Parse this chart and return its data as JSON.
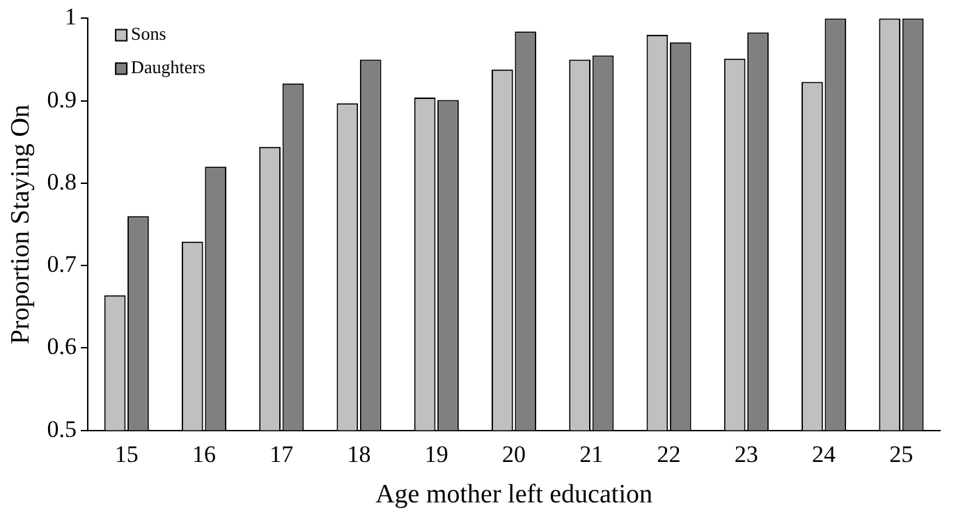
{
  "chart_data": {
    "type": "bar",
    "xlabel": "Age mother left education",
    "ylabel": "Proportion Staying On",
    "categories": [
      "15",
      "16",
      "17",
      "18",
      "19",
      "20",
      "21",
      "22",
      "23",
      "24",
      "25"
    ],
    "series": [
      {
        "name": "Sons",
        "color": "#c0c0c0",
        "values": [
          0.664,
          0.729,
          0.844,
          0.897,
          0.904,
          0.938,
          0.95,
          0.98,
          0.951,
          0.923,
          1.0
        ]
      },
      {
        "name": "Daughters",
        "color": "#808080",
        "values": [
          0.76,
          0.82,
          0.921,
          0.95,
          0.901,
          0.984,
          0.955,
          0.971,
          0.983,
          1.0,
          1.0
        ]
      }
    ],
    "ylim": [
      0.5,
      1
    ],
    "yticks": [
      0.5,
      0.6,
      0.7,
      0.8,
      0.9,
      1
    ],
    "grid": false,
    "legend": "top left"
  }
}
